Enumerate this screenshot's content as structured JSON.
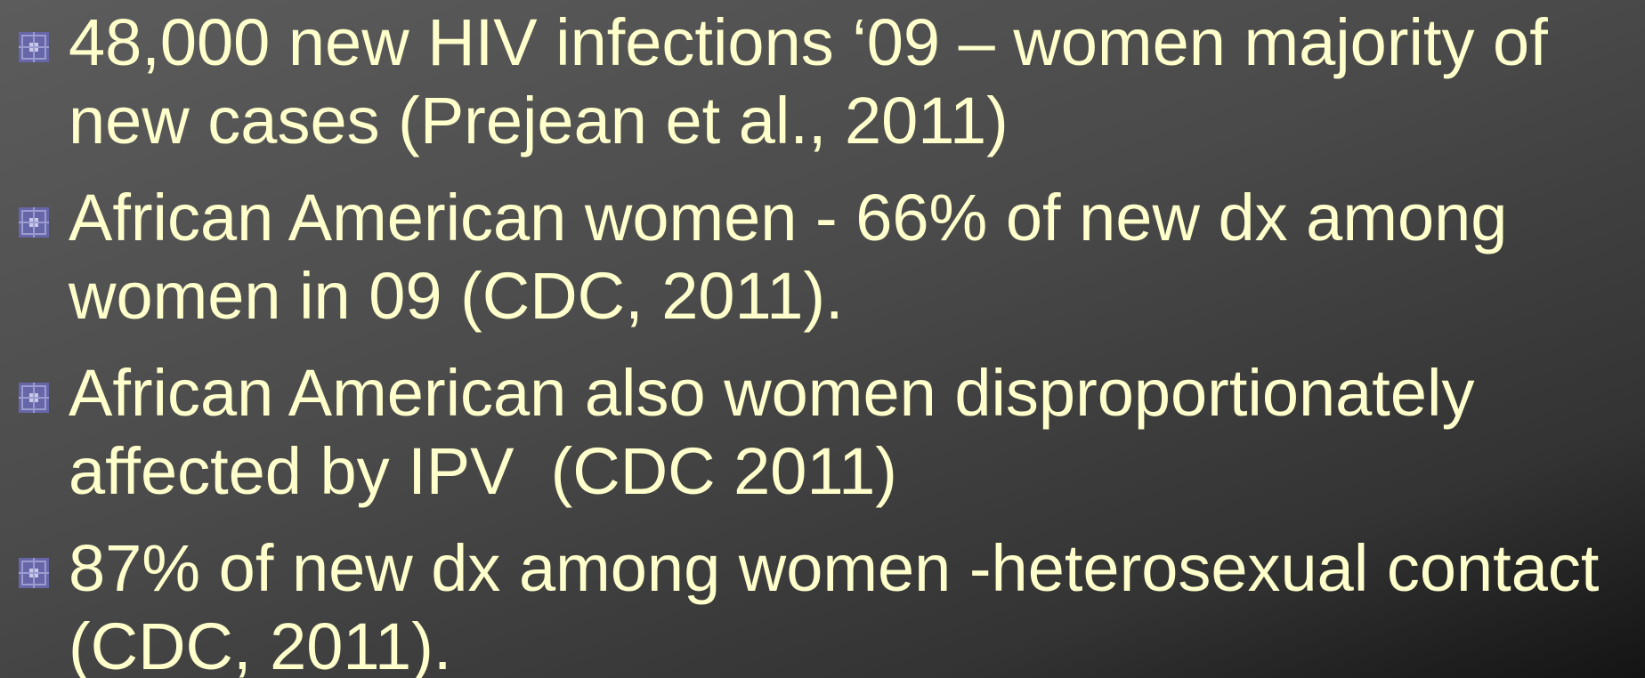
{
  "bullets": [
    {
      "lines": [
        "48,000 new HIV infections ‘09 – women majority of",
        "new cases (Prejean et al., 2011)"
      ]
    },
    {
      "lines": [
        "African American women - 66% of new dx among",
        "women in 09 (CDC, 2011)."
      ]
    },
    {
      "lines": [
        "African American also women disproportionately",
        "affected by IPV  (CDC 2011)"
      ]
    },
    {
      "lines": [
        "87% of new dx among women -heterosexual contact",
        "(CDC, 2011)."
      ]
    }
  ]
}
